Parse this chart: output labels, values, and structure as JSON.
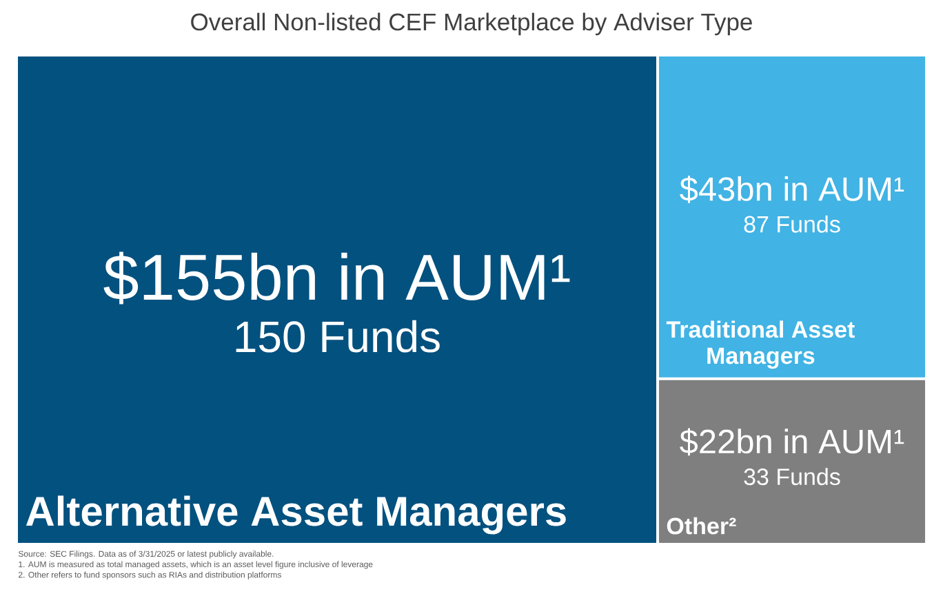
{
  "chart_data": {
    "type": "other",
    "title": "Overall Non-listed CEF Marketplace by Adviser Type",
    "categories": [
      "Alternative Asset Managers",
      "Traditional Asset Managers",
      "Other²"
    ],
    "series": [
      {
        "values": [
          155,
          43,
          22
        ],
        "colors": [
          "#03517f",
          "#41b3e4",
          "#7f7f7f"
        ],
        "value_labels": [
          "$155bn in AUM¹",
          "$43bn in AUM¹",
          "$22bn in AUM¹"
        ]
      },
      {
        "values": [
          150,
          87,
          33
        ],
        "value_labels": [
          "150 Funds",
          "87 Funds",
          "33 Funds"
        ]
      }
    ],
    "annotations": [
      "Source: SEC Filings. Data as of 3/31/2025 or latest publicly available.",
      "1. AUM is measured as total managed assets, which is an asset level figure inclusive of leverage",
      "2. Other refers to fund sponsors such as RIAs and distribution platforms"
    ]
  }
}
